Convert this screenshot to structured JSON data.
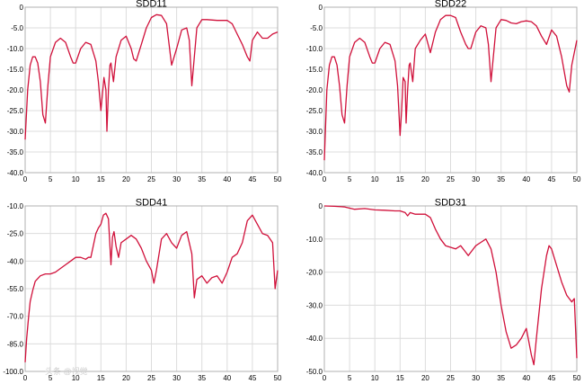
{
  "watermark": "头条 @视觉",
  "series_color": "#d0103a",
  "grid_color": "#dcdcdc",
  "chart_data": [
    {
      "type": "line",
      "title": "SDD11",
      "xlim": [
        0,
        50
      ],
      "ylim": [
        -40,
        0
      ],
      "xticks": [
        0,
        5,
        10,
        15,
        20,
        25,
        30,
        35,
        40,
        45,
        50
      ],
      "xtick_labels": [
        "0",
        "5",
        "10",
        "15",
        "20",
        "25",
        "30",
        "35",
        "40",
        "45",
        "50"
      ],
      "yticks": [
        0,
        -5,
        -10,
        -15,
        -20,
        -25,
        -30,
        -35,
        -40
      ],
      "ytick_labels": [
        "0",
        "-5.0",
        "-10.0",
        "-15.0",
        "-20.0",
        "-25.0",
        "-30.0",
        "-35.0",
        "-40.0"
      ],
      "grid": true,
      "series": [
        {
          "x": [
            0,
            0.5,
            1,
            1.5,
            2,
            2.5,
            3,
            3.5,
            4,
            4.5,
            5,
            6,
            7,
            8,
            9,
            9.5,
            10,
            11,
            12,
            13,
            14,
            14.5,
            15,
            15.3,
            15.6,
            16,
            16.2,
            16.5,
            16.8,
            17,
            17.5,
            18,
            19,
            20,
            21,
            21.5,
            22,
            23,
            24,
            25,
            26,
            27,
            28,
            28.5,
            29,
            30,
            31,
            32,
            32.5,
            33,
            34,
            35,
            36,
            38,
            40,
            41,
            42,
            43,
            44,
            44.5,
            45,
            46,
            47,
            48,
            49,
            50
          ],
          "y": [
            -32,
            -20,
            -14,
            -12,
            -12,
            -13.5,
            -18,
            -26,
            -28,
            -19,
            -12,
            -8.5,
            -7.5,
            -8.5,
            -12,
            -13.5,
            -13.5,
            -10,
            -8.5,
            -9,
            -13,
            -18,
            -25,
            -21,
            -17,
            -20,
            -30,
            -20,
            -14,
            -13.5,
            -18,
            -12,
            -8,
            -7,
            -10,
            -12.5,
            -13,
            -9,
            -5,
            -2.5,
            -1.8,
            -2,
            -4,
            -9,
            -14,
            -10,
            -5.5,
            -5,
            -8,
            -19,
            -5,
            -3,
            -3,
            -3.2,
            -3.2,
            -4,
            -6.5,
            -9,
            -12,
            -13,
            -8,
            -6,
            -7.5,
            -7.5,
            -6.5,
            -6
          ]
        }
      ]
    },
    {
      "type": "line",
      "title": "SDD22",
      "xlim": [
        0,
        50
      ],
      "ylim": [
        -40,
        0
      ],
      "xticks": [
        0,
        5,
        10,
        15,
        20,
        25,
        30,
        35,
        40,
        45,
        50
      ],
      "xtick_labels": [
        "0",
        "5",
        "10",
        "15",
        "20",
        "25",
        "30",
        "35",
        "40",
        "45",
        "50"
      ],
      "yticks": [
        0,
        -5,
        -10,
        -15,
        -20,
        -25,
        -30,
        -35,
        -40
      ],
      "ytick_labels": [
        "0",
        "-5.0",
        "-10.0",
        "-15.0",
        "-20.0",
        "-25.0",
        "-30.0",
        "-35.0",
        "-40.0"
      ],
      "grid": true,
      "series": [
        {
          "x": [
            0,
            0.5,
            1,
            1.5,
            2,
            2.5,
            3,
            3.5,
            4,
            4.5,
            5,
            6,
            7,
            8,
            9,
            9.5,
            10,
            11,
            12,
            13,
            14,
            14.5,
            15,
            15.3,
            15.6,
            16,
            16.2,
            16.5,
            16.8,
            17,
            17.5,
            18,
            19,
            20,
            21,
            22,
            23,
            24,
            25,
            26,
            27,
            28,
            28.5,
            29,
            30,
            31,
            32,
            32.5,
            33,
            34,
            35,
            36,
            37,
            38,
            39,
            40,
            41,
            42,
            43,
            44,
            45,
            46,
            47,
            48,
            48.5,
            49,
            50
          ],
          "y": [
            -37,
            -20,
            -14,
            -12,
            -12,
            -14,
            -19,
            -26,
            -28,
            -19,
            -12,
            -8.5,
            -7.5,
            -8.5,
            -12,
            -13.5,
            -13.5,
            -10,
            -8.5,
            -9,
            -13,
            -19,
            -31,
            -25,
            -17,
            -18,
            -28,
            -20,
            -14,
            -13.5,
            -18,
            -10,
            -8,
            -6.5,
            -11,
            -6,
            -3,
            -2,
            -2,
            -2.5,
            -6,
            -9,
            -10,
            -10,
            -6,
            -4.5,
            -5,
            -9,
            -18,
            -5,
            -3,
            -3.2,
            -3.8,
            -4,
            -3.5,
            -3.3,
            -3.5,
            -4.5,
            -7,
            -9,
            -5.5,
            -7,
            -12,
            -19,
            -20.5,
            -14,
            -8
          ]
        }
      ]
    },
    {
      "type": "line",
      "title": "SDD41",
      "xlim": [
        0,
        50
      ],
      "ylim": [
        -100,
        -10
      ],
      "xticks": [
        0,
        5,
        10,
        15,
        20,
        25,
        30,
        35,
        40,
        45,
        50
      ],
      "xtick_labels": [
        "0",
        "5",
        "10",
        "15",
        "20",
        "25",
        "30",
        "35",
        "40",
        "45",
        "50"
      ],
      "yticks": [
        -10,
        -25,
        -40,
        -55,
        -70,
        -85,
        -100
      ],
      "ytick_labels": [
        "-10.0",
        "-25.0",
        "-40.0",
        "-55.0",
        "-70.0",
        "-85.0",
        "-100.0"
      ],
      "grid": true,
      "series": [
        {
          "x": [
            0,
            0.3,
            0.7,
            1,
            1.5,
            2,
            3,
            4,
            5,
            6,
            7,
            8,
            9,
            10,
            11,
            12,
            12.5,
            13,
            14,
            14.5,
            15,
            15.5,
            16,
            16.5,
            17,
            17.3,
            17.6,
            18,
            18.5,
            19,
            20,
            21,
            22,
            23,
            24,
            25,
            25.5,
            26,
            27,
            28,
            29,
            30,
            31,
            32,
            33,
            33.5,
            34,
            35,
            36,
            37,
            38,
            39,
            40,
            41,
            42,
            43,
            44,
            45,
            46,
            47,
            48,
            49,
            49.5,
            50
          ],
          "y": [
            -95,
            -82,
            -70,
            -62,
            -56,
            -51,
            -48,
            -47,
            -47,
            -46,
            -44,
            -42,
            -40,
            -38,
            -38,
            -39,
            -38,
            -38,
            -25,
            -22,
            -20,
            -15,
            -14,
            -17,
            -42,
            -27,
            -24,
            -32,
            -38,
            -30,
            -28,
            -26,
            -28,
            -33,
            -40,
            -45,
            -52,
            -45,
            -28,
            -25,
            -30,
            -33,
            -26,
            -24,
            -36,
            -60,
            -50,
            -48,
            -52,
            -49,
            -48,
            -52,
            -46,
            -38,
            -36,
            -30,
            -18,
            -15,
            -20,
            -25,
            -26,
            -30,
            -55,
            -45
          ]
        }
      ]
    },
    {
      "type": "line",
      "title": "SDD31",
      "xlim": [
        0,
        50
      ],
      "ylim": [
        -50,
        0
      ],
      "xticks": [
        0,
        5,
        10,
        15,
        20,
        25,
        30,
        35,
        40,
        45,
        50
      ],
      "xtick_labels": [
        "0",
        "5",
        "10",
        "15",
        "20",
        "25",
        "30",
        "35",
        "40",
        "45",
        "50"
      ],
      "yticks": [
        0,
        -10,
        -20,
        -30,
        -40,
        -50
      ],
      "ytick_labels": [
        "0",
        "-10.0",
        "-20.0",
        "-30.0",
        "-40.0",
        "-50.0"
      ],
      "grid": true,
      "series": [
        {
          "x": [
            0,
            2,
            4,
            6,
            8,
            10,
            12,
            14,
            15,
            16,
            16.5,
            17,
            18,
            19,
            20,
            21,
            22,
            23,
            24,
            25,
            26,
            27,
            28,
            28.5,
            29,
            30,
            31,
            32,
            33,
            34,
            35,
            36,
            37,
            38,
            39,
            40,
            41,
            41.5,
            42,
            43,
            44,
            44.5,
            45,
            46,
            47,
            48,
            49,
            49.5,
            50
          ],
          "y": [
            0,
            -0.1,
            -0.3,
            -1,
            -0.8,
            -1.2,
            -1.3,
            -1.5,
            -1.5,
            -2,
            -3,
            -2,
            -2.5,
            -2.5,
            -2.5,
            -3.5,
            -7,
            -10,
            -12,
            -12.5,
            -13,
            -12,
            -14,
            -15,
            -14,
            -12,
            -11,
            -10,
            -13,
            -20,
            -30,
            -38,
            -43,
            -42,
            -40,
            -37,
            -45,
            -48,
            -40,
            -25,
            -15,
            -12,
            -13,
            -18,
            -23,
            -27,
            -29,
            -28,
            -46
          ]
        }
      ]
    }
  ]
}
